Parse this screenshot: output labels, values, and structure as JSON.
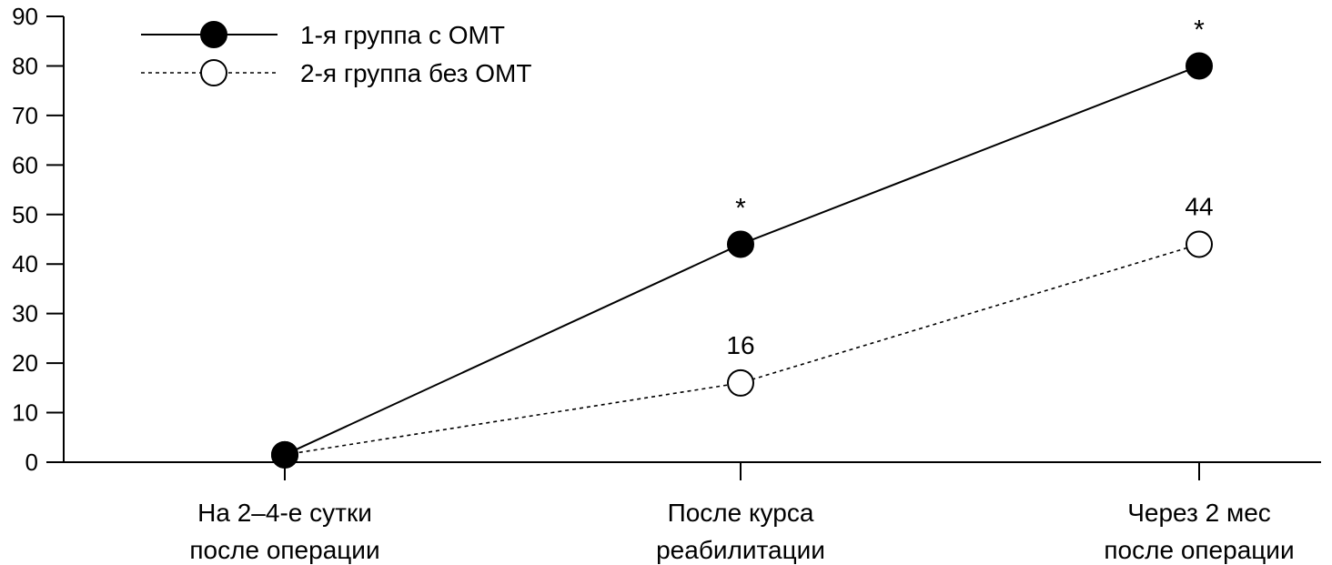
{
  "chart_data": {
    "type": "line",
    "title": "",
    "xlabel": "",
    "ylabel": "",
    "ylim": [
      0,
      90
    ],
    "yticks": [
      "0",
      "10",
      "20",
      "30",
      "40",
      "50",
      "60",
      "70",
      "80",
      "90"
    ],
    "categories": [
      [
        "На 2–4-е сутки",
        "после операции"
      ],
      [
        "После курса",
        "реабилитации"
      ],
      [
        "Через 2 мес",
        "после операции"
      ]
    ],
    "series": [
      {
        "name": "1-я группа с ОМТ",
        "values": [
          1.5,
          44,
          80
        ],
        "style": "solid",
        "marker": "filled",
        "annotations": [
          "",
          "*",
          "*"
        ]
      },
      {
        "name": "2-я группа без ОМТ",
        "values": [
          1.5,
          16,
          44
        ],
        "style": "dotted",
        "marker": "open",
        "annotations": [
          "",
          "16",
          "44"
        ]
      }
    ],
    "legend": "top-left",
    "grid": false
  }
}
